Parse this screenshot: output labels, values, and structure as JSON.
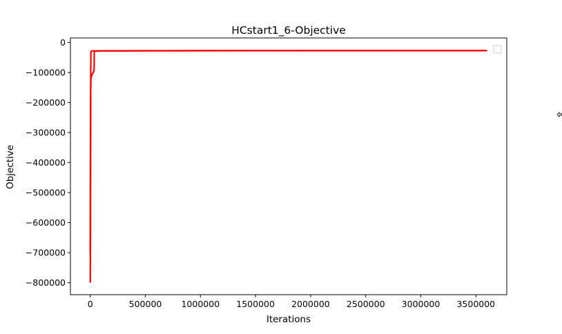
{
  "chart_data": {
    "type": "line",
    "title": "HCstart1_6-Objective",
    "xlabel": "Iterations",
    "ylabel": "Objective",
    "xlim": [
      -180000,
      3780000
    ],
    "ylim": [
      -840000,
      15000
    ],
    "xticks": [
      0,
      500000,
      1000000,
      1500000,
      2000000,
      2500000,
      3000000,
      3500000
    ],
    "xtick_labels": [
      "0",
      "500000",
      "1000000",
      "1500000",
      "2000000",
      "2500000",
      "3000000",
      "3500000"
    ],
    "yticks": [
      0,
      -100000,
      -200000,
      -300000,
      -400000,
      -500000,
      -600000,
      -700000,
      -800000
    ],
    "ytick_labels": [
      "0",
      "−100000",
      "−200000",
      "−300000",
      "−400000",
      "−500000",
      "−600000",
      "−700000",
      "−800000"
    ],
    "grid": false,
    "legend": {
      "placement": "top-right",
      "entries": []
    },
    "series": [
      {
        "color": "#ff0000",
        "x": [
          0,
          2000,
          4000,
          6000,
          10000,
          20000,
          30000,
          40000,
          100000,
          500000,
          1000000,
          2000000,
          3600000
        ],
        "y": [
          -800000,
          -650000,
          -120000,
          -33000,
          -29000,
          -28000,
          -28000,
          -28000,
          -28000,
          -27500,
          -27200,
          -27000,
          -27000
        ]
      },
      {
        "color": "#ff0000",
        "x": [
          0,
          3000,
          6000,
          15000,
          25000,
          35000,
          36000,
          45000,
          100000,
          500000,
          1000000,
          2000000,
          3600000
        ],
        "y": [
          -700000,
          -200000,
          -120000,
          -108000,
          -102000,
          -92000,
          -30000,
          -29000,
          -28500,
          -28000,
          -27500,
          -27200,
          -27000
        ]
      }
    ]
  }
}
